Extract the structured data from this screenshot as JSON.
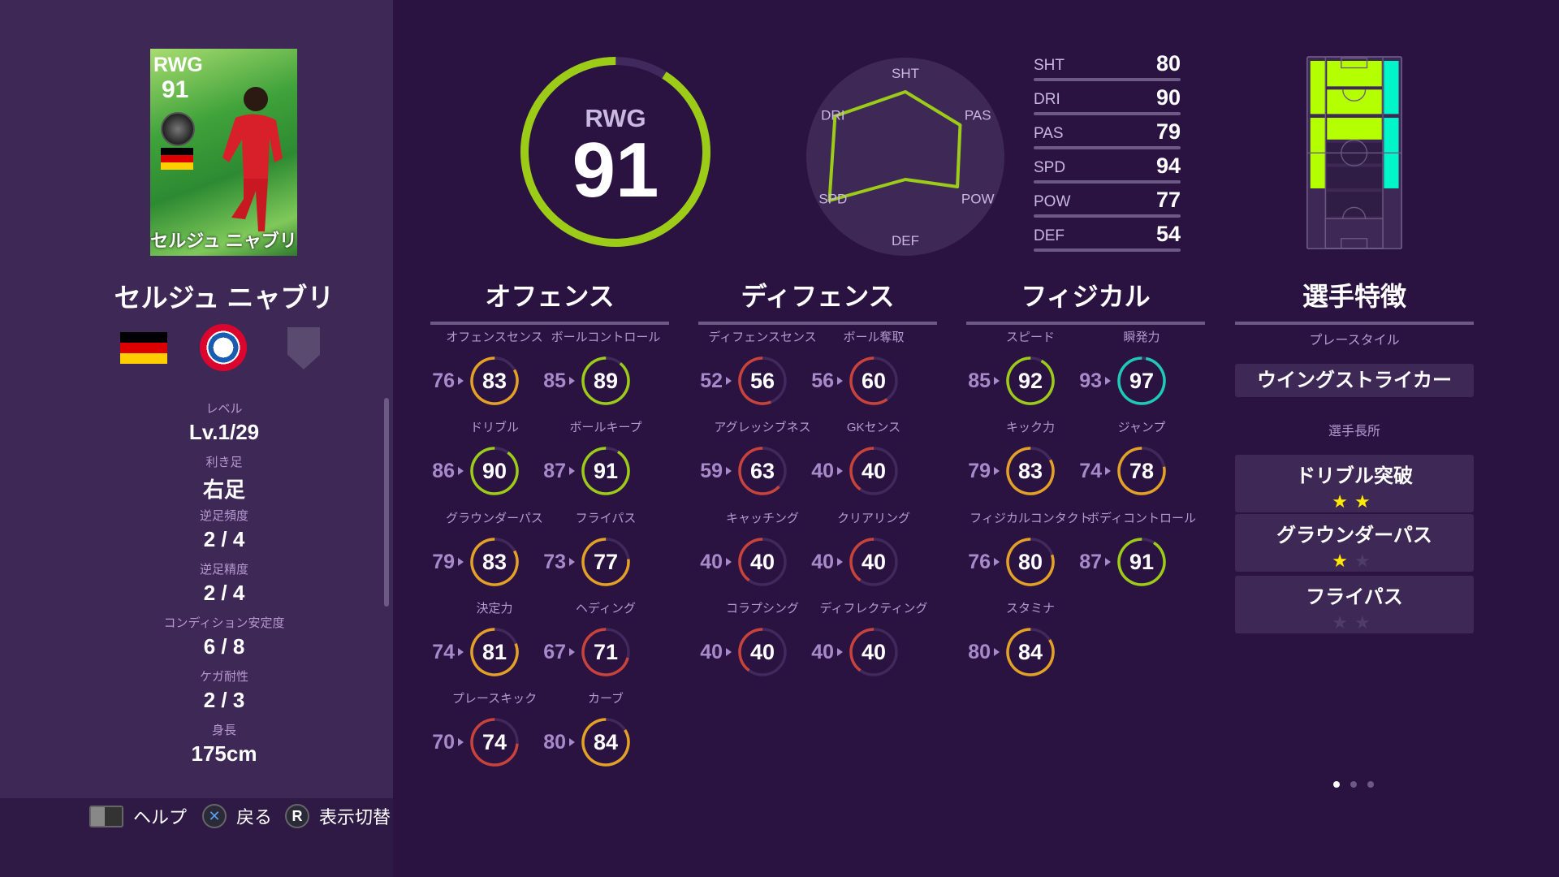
{
  "player": {
    "name": "セルジュ ニャブリ",
    "position": "RWG",
    "overall": "91",
    "card": {
      "position": "RWG",
      "overall": "91",
      "name": "セルジュ ニャブリ"
    },
    "nationality_flag": "germany-flag",
    "club_logo": "fc-bayern-munchen-logo"
  },
  "info": [
    {
      "label": "レベル",
      "value": "Lv.1/29"
    },
    {
      "label": "利き足",
      "value": "右足"
    },
    {
      "label": "逆足頻度",
      "value": "2 / 4"
    },
    {
      "label": "逆足精度",
      "value": "2 / 4"
    },
    {
      "label": "コンディション安定度",
      "value": "6 / 8"
    },
    {
      "label": "ケガ耐性",
      "value": "2 / 3"
    },
    {
      "label": "身長",
      "value": "175cm"
    }
  ],
  "hints": {
    "help": "ヘルプ",
    "back": "戻る",
    "toggle": "表示切替",
    "r_key": "R"
  },
  "summary_stats": [
    {
      "key": "SHT",
      "value": 80
    },
    {
      "key": "DRI",
      "value": 90
    },
    {
      "key": "PAS",
      "value": 79
    },
    {
      "key": "SPD",
      "value": 94
    },
    {
      "key": "POW",
      "value": 77
    },
    {
      "key": "DEF",
      "value": 54
    }
  ],
  "radar_labels": [
    "SHT",
    "PAS",
    "POW",
    "DEF",
    "SPD",
    "DRI"
  ],
  "colors": {
    "lime": "#9ccc18",
    "orange": "#e3a126",
    "red": "#c8433a",
    "cyan": "#1fc9b3",
    "track": "#40295c",
    "playable_zone": "#b4ff00",
    "main_zone": "#00f5c8"
  },
  "position_map": {
    "main_zone": "right-wing",
    "playable_zones": [
      "left-wing",
      "attacking-center"
    ]
  },
  "sections": [
    {
      "title": "オフェンス",
      "stats": [
        {
          "label": "オフェンスセンス",
          "base": 76,
          "value": 83
        },
        {
          "label": "ボールコントロール",
          "base": 85,
          "value": 89
        },
        {
          "label": "ドリブル",
          "base": 86,
          "value": 90
        },
        {
          "label": "ボールキープ",
          "base": 87,
          "value": 91
        },
        {
          "label": "グラウンダーパス",
          "base": 79,
          "value": 83
        },
        {
          "label": "フライパス",
          "base": 73,
          "value": 77
        },
        {
          "label": "決定力",
          "base": 74,
          "value": 81
        },
        {
          "label": "ヘディング",
          "base": 67,
          "value": 71
        },
        {
          "label": "プレースキック",
          "base": 70,
          "value": 74
        },
        {
          "label": "カーブ",
          "base": 80,
          "value": 84
        }
      ]
    },
    {
      "title": "ディフェンス",
      "stats": [
        {
          "label": "ディフェンスセンス",
          "base": 52,
          "value": 56
        },
        {
          "label": "ボール奪取",
          "base": 56,
          "value": 60
        },
        {
          "label": "アグレッシブネス",
          "base": 59,
          "value": 63
        },
        {
          "label": "GKセンス",
          "base": 40,
          "value": 40
        },
        {
          "label": "キャッチング",
          "base": 40,
          "value": 40
        },
        {
          "label": "クリアリング",
          "base": 40,
          "value": 40
        },
        {
          "label": "コラプシング",
          "base": 40,
          "value": 40
        },
        {
          "label": "ディフレクティング",
          "base": 40,
          "value": 40
        }
      ]
    },
    {
      "title": "フィジカル",
      "stats": [
        {
          "label": "スピード",
          "base": 85,
          "value": 92
        },
        {
          "label": "瞬発力",
          "base": 93,
          "value": 97
        },
        {
          "label": "キック力",
          "base": 79,
          "value": 83
        },
        {
          "label": "ジャンプ",
          "base": 74,
          "value": 78
        },
        {
          "label": "フィジカルコンタクト",
          "base": 76,
          "value": 80
        },
        {
          "label": "ボディコントロール",
          "base": 87,
          "value": 91
        },
        {
          "label": "スタミナ",
          "base": 80,
          "value": 84
        }
      ]
    }
  ],
  "traits": {
    "title": "選手特徴",
    "playstyle_label": "プレースタイル",
    "playstyle": "ウイングストライカー",
    "strengths_label": "選手長所",
    "strengths": [
      {
        "name": "ドリブル突破",
        "stars": 2,
        "max_stars": 2
      },
      {
        "name": "グラウンダーパス",
        "stars": 1,
        "max_stars": 2
      },
      {
        "name": "フライパス",
        "stars": 0,
        "max_stars": 2
      }
    ]
  },
  "pagination": {
    "current": 1,
    "total": 3
  }
}
